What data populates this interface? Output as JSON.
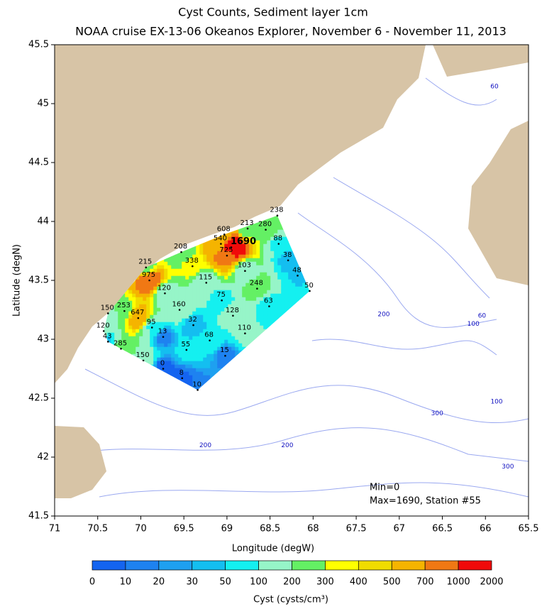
{
  "chart_data": {
    "type": "contour",
    "title": "Cyst Counts, Sediment layer 1cm",
    "subtitle": "NOAA cruise EX-13-06 Okeanos Explorer, November 6 - November 11, 2013",
    "xlabel": "Longitude (degW)",
    "ylabel": "Latitude (degN)",
    "xlim": [
      71,
      65.5
    ],
    "ylim": [
      41.5,
      45.5
    ],
    "xticks": [
      71,
      70.5,
      70,
      69.5,
      69,
      68.5,
      68,
      67.5,
      67,
      66.5,
      66,
      65.5
    ],
    "yticks": [
      41.5,
      42,
      42.5,
      43,
      43.5,
      44,
      44.5,
      45,
      45.5
    ],
    "x": [
      68.415,
      68.55,
      68.76,
      69.03,
      69.07,
      68.95,
      69.0,
      68.4,
      68.29,
      68.18,
      68.04,
      68.79,
      68.65,
      68.51,
      69.53,
      69.4,
      69.24,
      69.06,
      68.93,
      68.79,
      69.94,
      69.9,
      69.72,
      69.55,
      70.19,
      70.03,
      70.38,
      69.87,
      70.43,
      70.38,
      70.23,
      69.74,
      69.39,
      69.2,
      69.47,
      69.97,
      69.02,
      69.74,
      69.52,
      69.34
    ],
    "y": [
      44.05,
      43.93,
      43.94,
      43.89,
      43.81,
      43.78,
      43.71,
      43.81,
      43.67,
      43.54,
      43.41,
      43.58,
      43.43,
      43.28,
      43.74,
      43.62,
      43.48,
      43.33,
      43.2,
      43.05,
      43.61,
      43.5,
      43.39,
      43.25,
      43.24,
      43.18,
      43.22,
      43.1,
      43.07,
      42.98,
      42.92,
      43.02,
      43.12,
      42.99,
      42.91,
      42.82,
      42.86,
      42.75,
      42.67,
      42.57
    ],
    "values": [
      238,
      280,
      213,
      608,
      540,
      1690,
      725,
      88,
      38,
      48,
      50,
      103,
      248,
      63,
      208,
      338,
      115,
      75,
      128,
      110,
      215,
      975,
      120,
      160,
      253,
      647,
      150,
      95,
      120,
      43,
      285,
      13,
      32,
      68,
      55,
      150,
      15,
      0,
      8,
      10
    ],
    "annotations": [
      "Min=0",
      "Max=1690, Station #55"
    ],
    "colorbar": {
      "label": "Cyst (cysts/cm³)",
      "ticks": [
        0,
        10,
        20,
        30,
        50,
        100,
        200,
        300,
        400,
        500,
        700,
        1000,
        2000
      ],
      "colors": [
        "#1464f0",
        "#1e82f0",
        "#1ea0f0",
        "#14bef0",
        "#14f0f0",
        "#96f5c8",
        "#64f064",
        "#ffff00",
        "#f0dc00",
        "#f5b400",
        "#f07814",
        "#f00a0a"
      ]
    },
    "depth_labels": [
      {
        "value": 60,
        "lon": 65.895,
        "lat": 45.145
      },
      {
        "value": 200,
        "lon": 67.18,
        "lat": 43.21
      },
      {
        "value": 60,
        "lon": 66.04,
        "lat": 43.2
      },
      {
        "value": 100,
        "lon": 66.14,
        "lat": 43.13
      },
      {
        "value": 100,
        "lon": 65.87,
        "lat": 42.47
      },
      {
        "value": 300,
        "lon": 66.56,
        "lat": 42.37
      },
      {
        "value": 200,
        "lon": 69.25,
        "lat": 42.1
      },
      {
        "value": 200,
        "lon": 68.3,
        "lat": 42.1
      },
      {
        "value": 300,
        "lon": 65.74,
        "lat": 41.92
      }
    ]
  }
}
